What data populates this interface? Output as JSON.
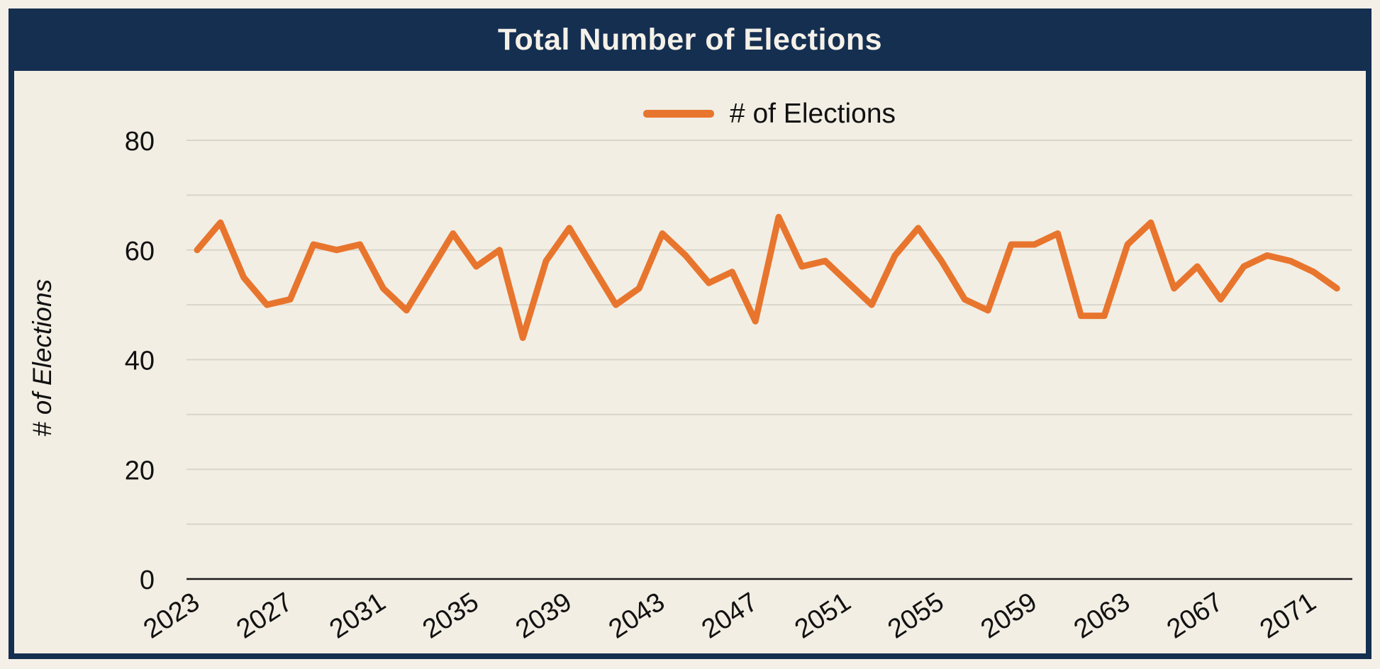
{
  "header": {
    "title": "Total Number of Elections"
  },
  "legend": {
    "label": "# of Elections"
  },
  "y_axis": {
    "title": "# of Elections",
    "ticks": [
      0,
      20,
      40,
      60,
      80
    ]
  },
  "x_axis": {
    "ticks": [
      2023,
      2027,
      2031,
      2035,
      2039,
      2043,
      2047,
      2051,
      2055,
      2059,
      2063,
      2067,
      2071
    ]
  },
  "colors": {
    "navy": "#152F51",
    "orange": "#E8752D",
    "plot_background": "#F2EEE4",
    "page_background": "#F4F0E8",
    "gridline": "#D8D5CC",
    "axis_line": "#1A1A1A",
    "title_text": "#F5F1E8",
    "body_text": "#111111"
  },
  "chart_data": {
    "type": "line",
    "title": "Total Number of Elections",
    "ylabel": "# of Elections",
    "xlabel": "",
    "ylim": [
      0,
      80
    ],
    "grid": true,
    "gridline_step": 10,
    "legend_position": "top-center",
    "legend_entries": [
      "# of Elections"
    ],
    "x": [
      2023,
      2024,
      2025,
      2026,
      2027,
      2028,
      2029,
      2030,
      2031,
      2032,
      2033,
      2034,
      2035,
      2036,
      2037,
      2038,
      2039,
      2040,
      2041,
      2042,
      2043,
      2044,
      2045,
      2046,
      2047,
      2048,
      2049,
      2050,
      2051,
      2052,
      2053,
      2054,
      2055,
      2056,
      2057,
      2058,
      2059,
      2060,
      2061,
      2062,
      2063,
      2064,
      2065,
      2066,
      2067,
      2068,
      2069,
      2070,
      2071,
      2072
    ],
    "series": [
      {
        "name": "# of Elections",
        "color": "#E8752D",
        "values": [
          60,
          65,
          55,
          50,
          51,
          61,
          60,
          61,
          53,
          49,
          56,
          63,
          57,
          60,
          44,
          58,
          64,
          57,
          50,
          53,
          63,
          59,
          54,
          56,
          47,
          66,
          57,
          58,
          54,
          50,
          59,
          64,
          58,
          51,
          49,
          61,
          61,
          63,
          48,
          48,
          61,
          65,
          53,
          57,
          51,
          57,
          59,
          58,
          56,
          53
        ]
      }
    ]
  }
}
